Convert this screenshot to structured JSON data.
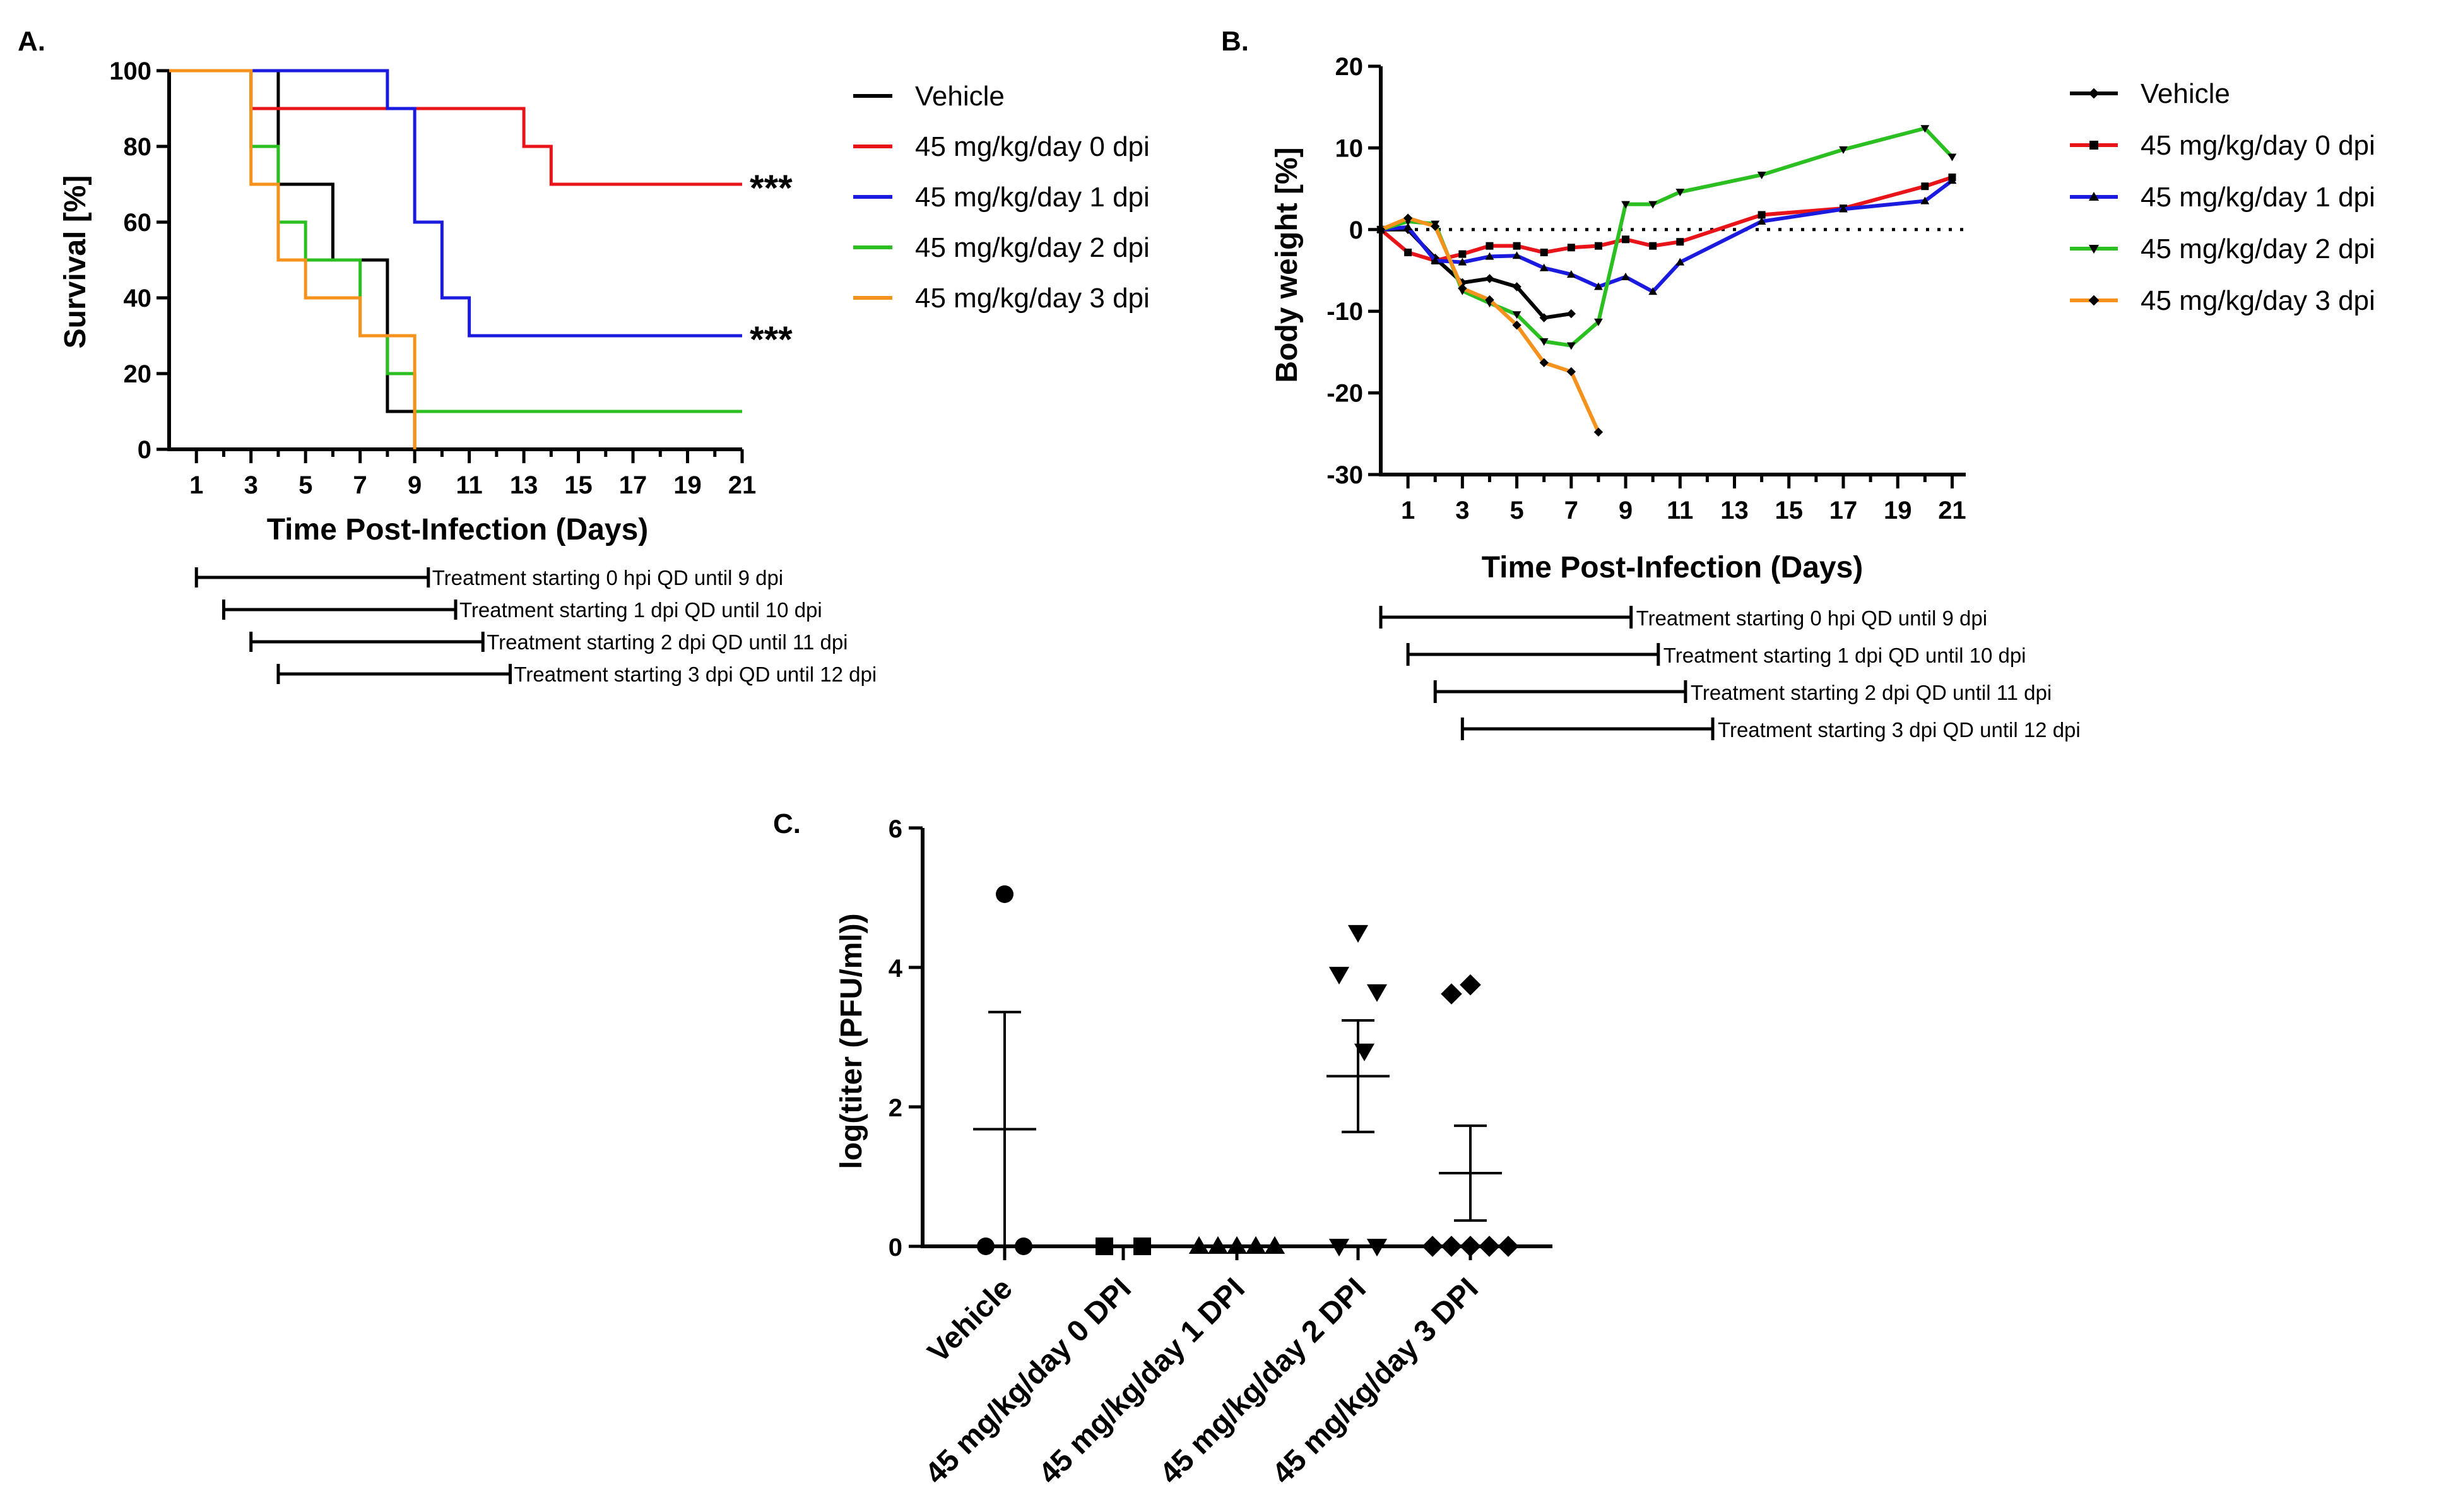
{
  "colors": {
    "Vehicle": "#000000",
    "0 dpi": "#e8141a",
    "1 dpi": "#1b1be0",
    "2 dpi": "#2cbf22",
    "3 dpi": "#f5921e"
  },
  "chart_data": [
    {
      "panel_label": "A.",
      "type": "line",
      "subtype": "kaplan-meier",
      "xlabel": "Time Post-Infection (Days)",
      "ylabel": "Survival [%]",
      "xlim": [
        0,
        21
      ],
      "ylim": [
        0,
        100
      ],
      "xticks": [
        1,
        3,
        5,
        7,
        9,
        11,
        13,
        15,
        17,
        19,
        21
      ],
      "yticks": [
        0,
        20,
        40,
        60,
        80,
        100
      ],
      "series": [
        {
          "name": "Vehicle",
          "color": "#000000",
          "steps": [
            [
              0,
              100
            ],
            [
              4,
              70
            ],
            [
              6,
              50
            ],
            [
              8,
              10
            ],
            [
              9,
              0
            ]
          ]
        },
        {
          "name": "45 mg/kg/day 0 dpi",
          "color": "#e8141a",
          "steps": [
            [
              0,
              100
            ],
            [
              3,
              90
            ],
            [
              13,
              80
            ],
            [
              14,
              70
            ],
            [
              21,
              70
            ]
          ],
          "annotation": "***"
        },
        {
          "name": "45 mg/kg/day 1 dpi",
          "color": "#1b1be0",
          "steps": [
            [
              0,
              100
            ],
            [
              8,
              90
            ],
            [
              9,
              60
            ],
            [
              10,
              40
            ],
            [
              11,
              30
            ],
            [
              21,
              30
            ]
          ],
          "annotation": "***"
        },
        {
          "name": "45 mg/kg/day 2 dpi",
          "color": "#2cbf22",
          "steps": [
            [
              0,
              100
            ],
            [
              3,
              80
            ],
            [
              4,
              60
            ],
            [
              5,
              50
            ],
            [
              7,
              30
            ],
            [
              8,
              20
            ],
            [
              9,
              10
            ],
            [
              21,
              10
            ]
          ]
        },
        {
          "name": "45 mg/kg/day 3 dpi",
          "color": "#f5921e",
          "steps": [
            [
              0,
              100
            ],
            [
              3,
              70
            ],
            [
              4,
              50
            ],
            [
              5,
              40
            ],
            [
              7,
              30
            ],
            [
              9,
              0
            ]
          ]
        }
      ],
      "treatments": [
        {
          "label": "Treatment starting 0 hpi QD until 9 dpi",
          "start": 1,
          "end": 9.5
        },
        {
          "label": "Treatment starting 1 dpi QD until 10 dpi",
          "start": 2,
          "end": 10.5
        },
        {
          "label": "Treatment starting 2 dpi QD until 11 dpi",
          "start": 3,
          "end": 11.5
        },
        {
          "label": "Treatment starting 3 dpi QD until 12 dpi",
          "start": 4,
          "end": 12.5
        }
      ]
    },
    {
      "panel_label": "B.",
      "type": "line",
      "xlabel": "Time Post-Infection (Days)",
      "ylabel": "Body weight [%]",
      "xlim": [
        0,
        21.5
      ],
      "ylim": [
        -30,
        20
      ],
      "xticks": [
        1,
        3,
        5,
        7,
        9,
        11,
        13,
        15,
        17,
        19,
        21
      ],
      "yticks": [
        -30,
        -20,
        -10,
        0,
        10,
        20
      ],
      "reference_line": 0,
      "series": [
        {
          "name": "Vehicle",
          "color": "#000000",
          "marker": "diamond",
          "x": [
            0,
            1,
            2,
            3,
            4,
            5,
            6,
            7
          ],
          "y": [
            0,
            0,
            -3.5,
            -6.5,
            -6,
            -7,
            -10.8,
            -10.3
          ]
        },
        {
          "name": "45 mg/kg/day 0 dpi",
          "color": "#e8141a",
          "marker": "square",
          "x": [
            0,
            1,
            2,
            3,
            4,
            5,
            6,
            7,
            8,
            9,
            10,
            11,
            14,
            17,
            20,
            21
          ],
          "y": [
            0,
            -2.8,
            -3.8,
            -3,
            -2,
            -2,
            -2.8,
            -2.2,
            -2,
            -1.2,
            -2,
            -1.5,
            1.8,
            2.6,
            5.3,
            6.4
          ]
        },
        {
          "name": "45 mg/kg/day 1 dpi",
          "color": "#1b1be0",
          "marker": "triangle-up",
          "x": [
            0,
            1,
            2,
            3,
            4,
            5,
            6,
            7,
            8,
            9,
            10,
            11,
            14,
            17,
            20,
            21
          ],
          "y": [
            0,
            0.3,
            -3.8,
            -4,
            -3.3,
            -3.2,
            -4.7,
            -5.5,
            -7,
            -5.8,
            -7.6,
            -4,
            1,
            2.5,
            3.5,
            6
          ]
        },
        {
          "name": "45 mg/kg/day 2 dpi",
          "color": "#2cbf22",
          "marker": "triangle-down",
          "x": [
            0,
            1,
            2,
            3,
            4,
            5,
            6,
            7,
            8,
            9,
            10,
            11,
            14,
            17,
            20,
            21
          ],
          "y": [
            0,
            1,
            0.7,
            -7.5,
            -9,
            -10.4,
            -13.7,
            -14.2,
            -11.3,
            3.1,
            3.1,
            4.6,
            6.7,
            9.8,
            12.4,
            8.9
          ]
        },
        {
          "name": "45 mg/kg/day 3 dpi",
          "color": "#f5921e",
          "marker": "diamond",
          "x": [
            0,
            1,
            2,
            3,
            4,
            5,
            6,
            7,
            8
          ],
          "y": [
            0,
            1.4,
            0.4,
            -7.2,
            -8.6,
            -11.7,
            -16.3,
            -17.4,
            -24.8
          ]
        }
      ],
      "treatments": [
        {
          "label": "Treatment starting 0 hpi QD until 9 dpi",
          "start": 0,
          "end": 9.2
        },
        {
          "label": "Treatment starting 1 dpi QD until 10 dpi",
          "start": 1,
          "end": 10.2
        },
        {
          "label": "Treatment starting 2 dpi QD until 11 dpi",
          "start": 2,
          "end": 11.2
        },
        {
          "label": "Treatment starting 3 dpi QD until 12 dpi",
          "start": 3,
          "end": 12.2
        }
      ]
    },
    {
      "panel_label": "C.",
      "type": "scatter",
      "subtype": "dot-plot-mean-sem",
      "ylabel": "log(titer (PFU/ml))",
      "ylim": [
        0,
        6
      ],
      "yticks": [
        0,
        2,
        4,
        6
      ],
      "categories": [
        "Vehicle",
        "45 mg/kg/day 0 DPI",
        "45 mg/kg/day 1 DPI",
        "45 mg/kg/day 2 DPI",
        "45 mg/kg/day 3 DPI"
      ],
      "groups": [
        {
          "category": "Vehicle",
          "marker": "circle",
          "points": [
            5.05,
            0,
            0
          ],
          "mean": 1.68,
          "sem_low": 0.0,
          "sem_high": 3.36
        },
        {
          "category": "45 mg/kg/day 0 DPI",
          "marker": "square",
          "points": [
            0,
            0
          ],
          "mean": 0,
          "sem_low": 0,
          "sem_high": 0
        },
        {
          "category": "45 mg/kg/day 1 DPI",
          "marker": "triangle-up",
          "points": [
            0,
            0,
            0,
            0,
            0
          ],
          "mean": 0,
          "sem_low": 0,
          "sem_high": 0
        },
        {
          "category": "45 mg/kg/day 2 DPI",
          "marker": "triangle-down",
          "points": [
            4.5,
            3.9,
            3.65,
            2.8,
            0,
            0
          ],
          "mean": 2.44,
          "sem_low": 1.64,
          "sem_high": 3.24
        },
        {
          "category": "45 mg/kg/day 3 DPI",
          "marker": "diamond",
          "points": [
            3.75,
            3.62,
            0,
            0,
            0,
            0,
            0
          ],
          "mean": 1.05,
          "sem_low": 0.37,
          "sem_high": 1.73
        }
      ]
    }
  ]
}
